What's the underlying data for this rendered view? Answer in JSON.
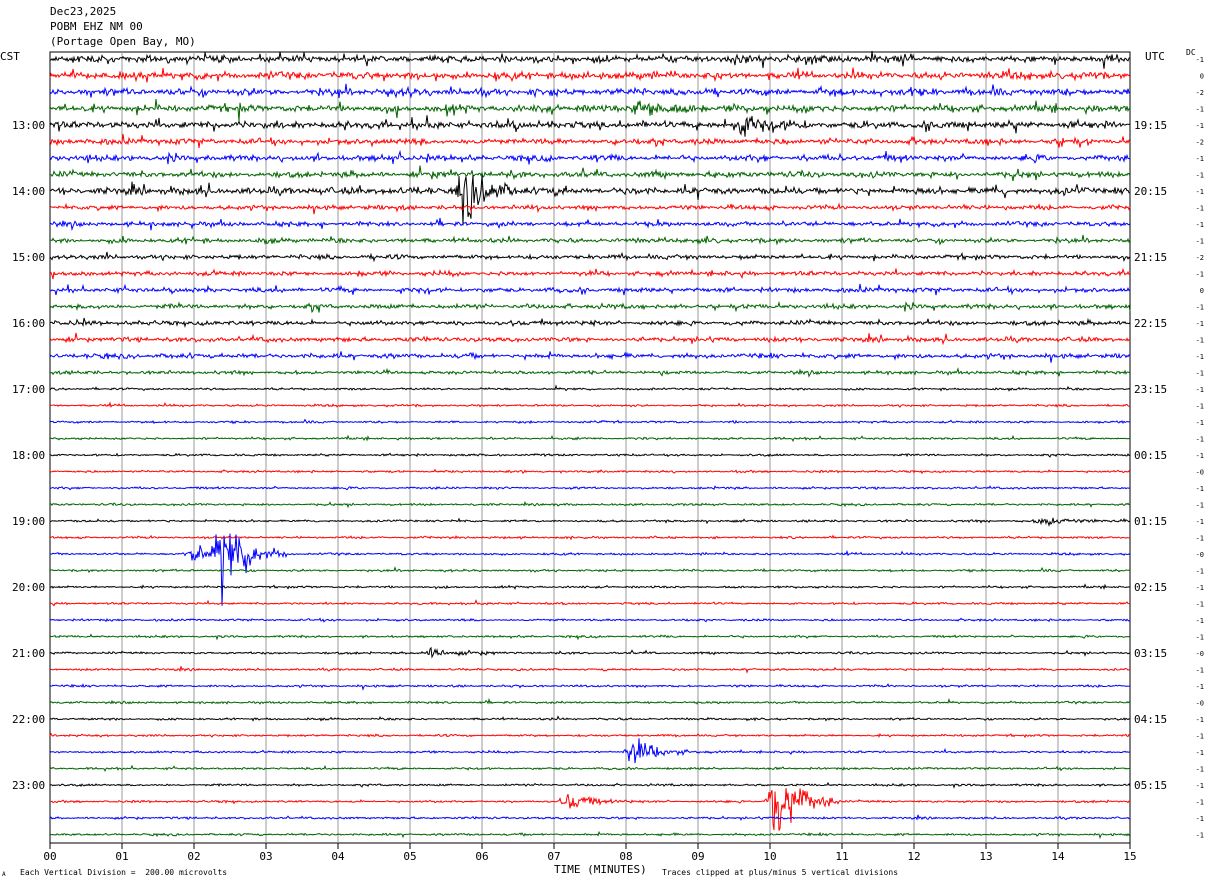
{
  "header": {
    "date": "Dec23,2025",
    "station": "POBM EHZ NM 00",
    "location": "(Portage Open Bay, MO)"
  },
  "left_zone_label": "CST",
  "right_zone_label": "UTC",
  "dc_label": "DC",
  "footer": {
    "vertical_division": "Each Vertical Division =  200.00 microvolts",
    "clip_note": "Traces clipped at plus/minus 5 vertical divisions",
    "corner_mark": "A"
  },
  "chart_data": {
    "type": "line",
    "subtype": "helicorder",
    "xlabel": "TIME (MINUTES)",
    "x_ticks": [
      "00",
      "01",
      "02",
      "03",
      "04",
      "05",
      "06",
      "07",
      "08",
      "09",
      "10",
      "11",
      "12",
      "13",
      "14",
      "15"
    ],
    "xlim": [
      0,
      15
    ],
    "grid": true,
    "trace_colors": [
      "#000000",
      "#ff0000",
      "#0000ff",
      "#006400"
    ],
    "trace_count": 48,
    "left_time_labels": [
      {
        "row": 4,
        "label": "13:00"
      },
      {
        "row": 8,
        "label": "14:00"
      },
      {
        "row": 12,
        "label": "15:00"
      },
      {
        "row": 16,
        "label": "16:00"
      },
      {
        "row": 20,
        "label": "17:00"
      },
      {
        "row": 24,
        "label": "18:00"
      },
      {
        "row": 28,
        "label": "19:00"
      },
      {
        "row": 32,
        "label": "20:00"
      },
      {
        "row": 36,
        "label": "21:00"
      },
      {
        "row": 40,
        "label": "22:00"
      },
      {
        "row": 44,
        "label": "23:00"
      }
    ],
    "right_time_labels": [
      {
        "row": 4,
        "label": "19:15"
      },
      {
        "row": 8,
        "label": "20:15"
      },
      {
        "row": 12,
        "label": "21:15"
      },
      {
        "row": 16,
        "label": "22:15"
      },
      {
        "row": 20,
        "label": "23:15"
      },
      {
        "row": 24,
        "label": "00:15"
      },
      {
        "row": 28,
        "label": "01:15"
      },
      {
        "row": 32,
        "label": "02:15"
      },
      {
        "row": 36,
        "label": "03:15"
      },
      {
        "row": 40,
        "label": "04:15"
      },
      {
        "row": 44,
        "label": "05:15"
      }
    ],
    "dc_offsets": [
      "-1",
      "0",
      "-2",
      "-1",
      "-1",
      "-2",
      "-1",
      "-1",
      "-1",
      "-1",
      "-1",
      "-1",
      "-2",
      "-1",
      "0",
      "-1",
      "-1",
      "-1",
      "-1",
      "-1",
      "-1",
      "-1",
      "-1",
      "-1",
      "-1",
      "-0",
      "-1",
      "-1",
      "-1",
      "-1",
      "-0",
      "-1",
      "-1",
      "-1",
      "-1",
      "-1",
      "-0",
      "-1",
      "-1",
      "-0",
      "-1",
      "-1",
      "-1",
      "-1",
      "-1",
      "-1",
      "-1",
      "-1"
    ],
    "trace_activity": [
      5,
      5,
      5,
      5,
      5,
      4,
      4,
      4,
      5,
      3,
      3,
      3,
      3,
      3,
      3,
      3,
      3,
      3,
      3,
      2,
      1,
      1,
      1,
      1,
      1,
      1,
      1,
      1,
      1,
      1,
      1,
      1,
      1,
      1,
      1,
      1,
      1,
      1,
      1,
      1,
      1,
      1,
      1,
      1,
      1,
      1,
      1,
      1
    ],
    "events": [
      {
        "trace": 8,
        "minute": 5.75,
        "amplitude": 1.5
      },
      {
        "trace": 30,
        "minute": 2.4,
        "amplitude": 2.2
      },
      {
        "trace": 30,
        "minute": 2.0,
        "amplitude": 0.6
      },
      {
        "trace": 42,
        "minute": 8.1,
        "amplitude": 0.8
      },
      {
        "trace": 45,
        "minute": 10.05,
        "amplitude": 2.6
      },
      {
        "trace": 45,
        "minute": 7.2,
        "amplitude": 0.5
      },
      {
        "trace": 4,
        "minute": 9.6,
        "amplitude": 0.6
      },
      {
        "trace": 3,
        "minute": 8.2,
        "amplitude": 0.6
      },
      {
        "trace": 28,
        "minute": 13.8,
        "amplitude": 0.3
      },
      {
        "trace": 36,
        "minute": 5.3,
        "amplitude": 0.3
      }
    ]
  }
}
